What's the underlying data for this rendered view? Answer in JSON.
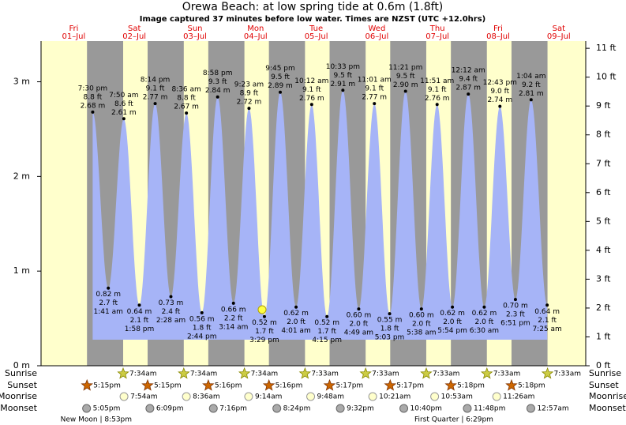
{
  "header": {
    "title": "Orewa Beach: at low  spring tide at 0.6m (1.8ft)",
    "subtitle": "Image captured 37 minutes before low water. Times are NZST (UTC +12.0hrs)"
  },
  "chart_data": {
    "type": "tide",
    "ylim": [
      0,
      3.43
    ],
    "yticks": [
      {
        "value": 0,
        "label": "0 m"
      },
      {
        "value": 1,
        "label": "1 m"
      },
      {
        "value": 2,
        "label": "2 m"
      },
      {
        "value": 3,
        "label": "3 m"
      }
    ],
    "y2lim": [
      0,
      11.25
    ],
    "y2ticks": [
      {
        "value": 0,
        "label": "0 ft"
      },
      {
        "value": 1,
        "label": "1 ft"
      },
      {
        "value": 2,
        "label": "2 ft"
      },
      {
        "value": 3,
        "label": "3 ft"
      },
      {
        "value": 4,
        "label": "4 ft"
      },
      {
        "value": 5,
        "label": "5 ft"
      },
      {
        "value": 6,
        "label": "6 ft"
      },
      {
        "value": 7,
        "label": "7 ft"
      },
      {
        "value": 8,
        "label": "8 ft"
      },
      {
        "value": 9,
        "label": "9 ft"
      },
      {
        "value": 10,
        "label": "10 ft"
      },
      {
        "value": 11,
        "label": "11 ft"
      }
    ],
    "rows": {
      "sunrise": "Sunrise",
      "sunset": "Sunset",
      "moonrise": "Moonrise",
      "moonset": "Moonset"
    },
    "days": [
      {
        "weekday": "Fri",
        "date": "01–Jul",
        "sunset": "5:15pm",
        "moonset": "5:05pm",
        "moon_phase": "New Moon | 8:53pm",
        "tides": [
          {
            "time": "7:30 pm",
            "m": 2.68,
            "m_label": "2.68 m",
            "ft": 8.8,
            "ft_label": "8.8 ft"
          }
        ]
      },
      {
        "weekday": "Sat",
        "date": "02–Jul",
        "sunrise": "7:34am",
        "sunset": "5:15pm",
        "moonrise": "7:54am",
        "moonset": "6:09pm",
        "tides": [
          {
            "time": "1:41 am",
            "m": 0.82,
            "m_label": "0.82 m",
            "ft": 2.7,
            "ft_label": "2.7 ft"
          },
          {
            "time": "7:50 am",
            "m": 2.61,
            "m_label": "2.61 m",
            "ft": 8.6,
            "ft_label": "8.6 ft"
          },
          {
            "time": "1:58 pm",
            "m": 0.64,
            "m_label": "0.64 m",
            "ft": 2.1,
            "ft_label": "2.1 ft"
          },
          {
            "time": "8:14 pm",
            "m": 2.77,
            "m_label": "2.77 m",
            "ft": 9.1,
            "ft_label": "9.1 ft"
          }
        ]
      },
      {
        "weekday": "Sun",
        "date": "03–Jul",
        "sunrise": "7:34am",
        "sunset": "5:16pm",
        "moonrise": "8:36am",
        "moonset": "7:16pm",
        "tides": [
          {
            "time": "2:28 am",
            "m": 0.73,
            "m_label": "0.73 m",
            "ft": 2.4,
            "ft_label": "2.4 ft"
          },
          {
            "time": "8:36 am",
            "m": 2.67,
            "m_label": "2.67 m",
            "ft": 8.8,
            "ft_label": "8.8 ft"
          },
          {
            "time": "2:44 pm",
            "m": 0.56,
            "m_label": "0.56 m",
            "ft": 1.8,
            "ft_label": "1.8 ft"
          },
          {
            "time": "8:58 pm",
            "m": 2.84,
            "m_label": "2.84 m",
            "ft": 9.3,
            "ft_label": "9.3 ft"
          }
        ]
      },
      {
        "weekday": "Mon",
        "date": "04–Jul",
        "sunrise": "7:34am",
        "sunset": "5:16pm",
        "moonrise": "9:14am",
        "moonset": "8:24pm",
        "tides": [
          {
            "time": "3:14 am",
            "m": 0.66,
            "m_label": "0.66 m",
            "ft": 2.2,
            "ft_label": "2.2 ft"
          },
          {
            "time": "9:23 am",
            "m": 2.72,
            "m_label": "2.72 m",
            "ft": 8.9,
            "ft_label": "8.9 ft"
          },
          {
            "time": "3:29 pm",
            "m": 0.52,
            "m_label": "0.52 m",
            "ft": 1.7,
            "ft_label": "1.7 ft"
          },
          {
            "time": "9:45 pm",
            "m": 2.89,
            "m_label": "2.89 m",
            "ft": 9.5,
            "ft_label": "9.5 ft"
          }
        ]
      },
      {
        "weekday": "Tue",
        "date": "05–Jul",
        "sunrise": "7:33am",
        "sunset": "5:17pm",
        "moonrise": "9:48am",
        "moonset": "9:32pm",
        "tides": [
          {
            "time": "4:01 am",
            "m": 0.62,
            "m_label": "0.62 m",
            "ft": 2.0,
            "ft_label": "2.0 ft"
          },
          {
            "time": "10:12 am",
            "m": 2.76,
            "m_label": "2.76 m",
            "ft": 9.1,
            "ft_label": "9.1 ft"
          },
          {
            "time": "4:15 pm",
            "m": 0.52,
            "m_label": "0.52 m",
            "ft": 1.7,
            "ft_label": "1.7 ft"
          },
          {
            "time": "10:33 pm",
            "m": 2.91,
            "m_label": "2.91 m",
            "ft": 9.5,
            "ft_label": "9.5 ft"
          }
        ]
      },
      {
        "weekday": "Wed",
        "date": "06–Jul",
        "sunrise": "7:33am",
        "sunset": "5:17pm",
        "moonrise": "10:21am",
        "moonset": "10:40pm",
        "tides": [
          {
            "time": "4:49 am",
            "m": 0.6,
            "m_label": "0.60 m",
            "ft": 2.0,
            "ft_label": "2.0 ft"
          },
          {
            "time": "11:01 am",
            "m": 2.77,
            "m_label": "2.77 m",
            "ft": 9.1,
            "ft_label": "9.1 ft"
          },
          {
            "time": "5:03 pm",
            "m": 0.55,
            "m_label": "0.55 m",
            "ft": 1.8,
            "ft_label": "1.8 ft"
          },
          {
            "time": "11:21 pm",
            "m": 2.9,
            "m_label": "2.90 m",
            "ft": 9.5,
            "ft_label": "9.5 ft"
          }
        ]
      },
      {
        "weekday": "Thu",
        "date": "07–Jul",
        "sunrise": "7:33am",
        "sunset": "5:18pm",
        "moonrise": "10:53am",
        "moonset": "11:48pm",
        "moon_phase": "First Quarter | 6:29pm",
        "tides": [
          {
            "time": "5:38 am",
            "m": 0.6,
            "m_label": "0.60 m",
            "ft": 2.0,
            "ft_label": "2.0 ft"
          },
          {
            "time": "11:51 am",
            "m": 2.76,
            "m_label": "2.76 m",
            "ft": 9.1,
            "ft_label": "9.1 ft"
          },
          {
            "time": "5:54 pm",
            "m": 0.62,
            "m_label": "0.62 m",
            "ft": 2.0,
            "ft_label": "2.0 ft"
          }
        ]
      },
      {
        "weekday": "Fri",
        "date": "08–Jul",
        "sunrise": "7:33am",
        "sunset": "5:18pm",
        "moonrise": "11:26am",
        "tides": [
          {
            "time": "12:12 am",
            "m": 2.87,
            "m_label": "2.87 m",
            "ft": 9.4,
            "ft_label": "9.4 ft"
          },
          {
            "time": "6:30 am",
            "m": 0.62,
            "m_label": "0.62 m",
            "ft": 2.0,
            "ft_label": "2.0 ft"
          },
          {
            "time": "12:43 pm",
            "m": 2.74,
            "m_label": "2.74 m",
            "ft": 9.0,
            "ft_label": "9.0 ft"
          },
          {
            "time": "6:51 pm",
            "m": 0.7,
            "m_label": "0.70 m",
            "ft": 2.3,
            "ft_label": "2.3 ft"
          }
        ]
      },
      {
        "weekday": "Sat",
        "date": "09–Jul",
        "sunrise": "7:33am",
        "moonset": "12:57am",
        "tides": [
          {
            "time": "1:04 am",
            "m": 2.81,
            "m_label": "2.81 m",
            "ft": 9.2,
            "ft_label": "9.2 ft"
          },
          {
            "time": "7:25 am",
            "m": 0.64,
            "m_label": "0.64 m",
            "ft": 2.1,
            "ft_label": "2.1 ft"
          }
        ]
      }
    ]
  }
}
